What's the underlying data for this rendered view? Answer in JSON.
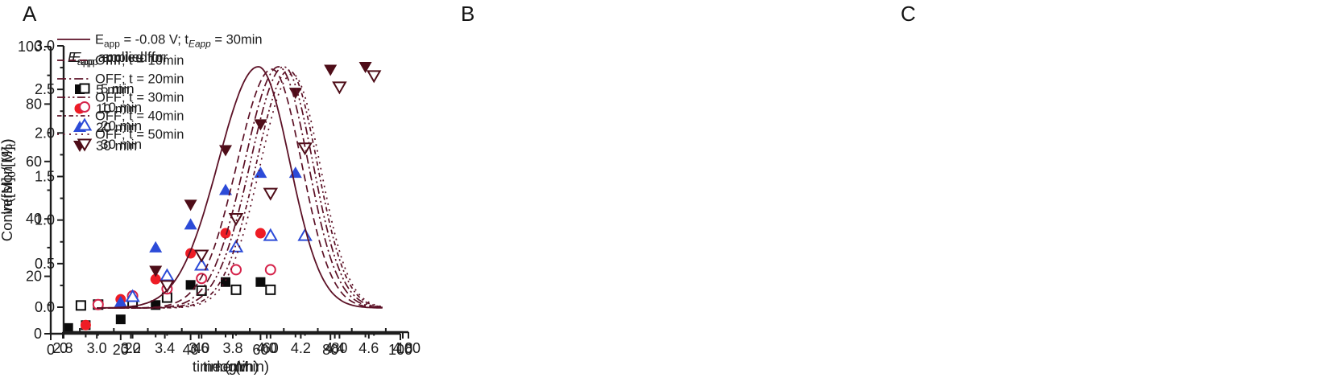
{
  "figure": {
    "background": "#ffffff",
    "axis_color": "#1c1c1c"
  },
  "chart_data": [
    {
      "id": "A",
      "type": "scatter",
      "title": "A",
      "xlabel": "time (min)",
      "ylabel": "Conversion (%)",
      "xlim": [
        0,
        100
      ],
      "ylim": [
        0,
        100
      ],
      "xticks": {
        "values": [
          0,
          20,
          40,
          60,
          80,
          100
        ],
        "labels": [
          "0",
          "20",
          "40",
          "60",
          "80",
          "100"
        ]
      },
      "yticks": {
        "values": [
          0,
          20,
          40,
          60,
          80,
          100
        ],
        "labels": [
          "0",
          "20",
          "40",
          "60",
          "80",
          "100"
        ]
      },
      "xminor": [
        10,
        30,
        50,
        70,
        90
      ],
      "yminor": [
        10,
        30,
        50,
        70,
        90
      ],
      "legend": {
        "title_parts": [
          {
            "t": "E",
            "italic": true
          },
          {
            "t": "app",
            "sub": true
          },
          {
            "t": " applied for"
          }
        ],
        "position": "top-left"
      },
      "series": [
        {
          "name": "5 min",
          "marker": "square",
          "open": false,
          "color": "#0b0b0b",
          "points": [
            [
              5,
              2
            ],
            [
              10,
              3
            ],
            [
              20,
              5
            ],
            [
              30,
              10
            ],
            [
              40,
              17
            ],
            [
              50,
              18
            ],
            [
              60,
              18
            ]
          ]
        },
        {
          "name": "10 min",
          "marker": "circle",
          "open": false,
          "color": "#ee1c25",
          "points": [
            [
              10,
              3
            ],
            [
              20,
              12
            ],
            [
              30,
              19
            ],
            [
              40,
              28
            ],
            [
              50,
              35
            ],
            [
              60,
              35
            ]
          ]
        },
        {
          "name": "20 min",
          "marker": "triangle-up",
          "open": false,
          "color": "#2c4bd8",
          "points": [
            [
              20,
              11
            ],
            [
              30,
              30
            ],
            [
              40,
              38
            ],
            [
              50,
              50
            ],
            [
              60,
              56
            ],
            [
              70,
              56
            ]
          ]
        },
        {
          "name": "30 min",
          "marker": "triangle-down",
          "open": false,
          "color": "#4e0d18",
          "points": [
            [
              30,
              22
            ],
            [
              40,
              45
            ],
            [
              50,
              64
            ],
            [
              60,
              73
            ],
            [
              70,
              84
            ],
            [
              80,
              92
            ],
            [
              90,
              93
            ]
          ]
        }
      ]
    },
    {
      "id": "B",
      "type": "scatter",
      "title": "B",
      "xlabel": "time (min)",
      "ylabel_parts": [
        {
          "t": "ln([M]"
        },
        {
          "t": "0",
          "sub": true
        },
        {
          "t": "/[M]"
        },
        {
          "t": "t",
          "sub": true
        },
        {
          "t": ")"
        }
      ],
      "xlim": [
        0,
        100
      ],
      "ylim": [
        0,
        3.0
      ],
      "xticks": {
        "values": [
          0,
          20,
          40,
          60,
          80,
          100
        ],
        "labels": [
          "0",
          "20",
          "40",
          "60",
          "80",
          "100"
        ]
      },
      "yticks": {
        "values": [
          0,
          0.5,
          1,
          1.5,
          2,
          2.5,
          3
        ],
        "labels": [
          "0.0",
          "0.5",
          "1.0",
          "1.5",
          "2.0",
          "2.5",
          "3.0"
        ]
      },
      "xminor": [
        10,
        30,
        50,
        70,
        90
      ],
      "yminor": [
        0.25,
        0.75,
        1.25,
        1.75,
        2.25,
        2.75
      ],
      "legend": {
        "title_parts": [
          {
            "t": "E",
            "italic": true
          },
          {
            "t": "app",
            "sub": true
          },
          {
            "t": " applied for"
          }
        ],
        "position": "top-left"
      },
      "series": [
        {
          "name": "5 min",
          "marker": "square",
          "open": true,
          "color": "#0b0b0b",
          "points": [
            [
              5,
              0.02
            ],
            [
              10,
              0.03
            ],
            [
              20,
              0.05
            ],
            [
              30,
              0.11
            ],
            [
              40,
              0.19
            ],
            [
              50,
              0.2
            ],
            [
              60,
              0.2
            ]
          ]
        },
        {
          "name": "10 min",
          "marker": "circle",
          "open": true,
          "color": "#d5234a",
          "points": [
            [
              10,
              0.03
            ],
            [
              20,
              0.13
            ],
            [
              30,
              0.21
            ],
            [
              40,
              0.33
            ],
            [
              50,
              0.43
            ],
            [
              60,
              0.43
            ]
          ]
        },
        {
          "name": "20 min",
          "marker": "triangle-up",
          "open": true,
          "color": "#2c4bd8",
          "points": [
            [
              20,
              0.12
            ],
            [
              30,
              0.36
            ],
            [
              40,
              0.48
            ],
            [
              50,
              0.69
            ],
            [
              60,
              0.82
            ],
            [
              70,
              0.82
            ]
          ]
        },
        {
          "name": "30 min",
          "marker": "triangle-down",
          "open": true,
          "color": "#4e0d18",
          "points": [
            [
              30,
              0.25
            ],
            [
              40,
              0.6
            ],
            [
              50,
              1.02
            ],
            [
              60,
              1.31
            ],
            [
              70,
              1.83
            ],
            [
              80,
              2.53
            ],
            [
              90,
              2.66
            ]
          ]
        }
      ]
    },
    {
      "id": "C",
      "type": "line",
      "title": "C",
      "xlabel": "logM",
      "xlim": [
        2.8,
        4.8
      ],
      "xticks": {
        "values": [
          2.8,
          3.0,
          3.2,
          3.4,
          3.6,
          3.8,
          4.0,
          4.2,
          4.4,
          4.6,
          4.8
        ],
        "labels": [
          "2.8",
          "3.0",
          "3.2",
          "3.4",
          "3.6",
          "3.8",
          "4.0",
          "4.2",
          "4.4",
          "4.6",
          "4.8"
        ]
      },
      "xminor": [
        2.9,
        3.1,
        3.3,
        3.5,
        3.7,
        3.9,
        4.1,
        4.3,
        4.5,
        4.7
      ],
      "color": "#5c1126",
      "legend_position": "top-left",
      "curves": [
        {
          "name": "Eapp = -0.08 V; tEapp = 30min",
          "label_parts": [
            {
              "t": "E"
            },
            {
              "t": "app",
              "sub": true
            },
            {
              "t": " = -0.08 V; t"
            },
            {
              "t": "Eapp",
              "sub": true,
              "italic": true
            },
            {
              "t": " = 30min"
            }
          ],
          "dash": "",
          "peak_logM": 3.95,
          "sigma_left": 0.235,
          "sigma_right": 0.185,
          "amplitude": 1.0
        },
        {
          "name": "OFF; t = 10min",
          "label_parts": [
            {
              "t": "OFF; t = 10min"
            }
          ],
          "dash": "9,5",
          "peak_logM": 4.03,
          "sigma_left": 0.205,
          "sigma_right": 0.175,
          "amplitude": 0.99
        },
        {
          "name": "OFF; t = 20min",
          "label_parts": [
            {
              "t": "OFF; t = 20min"
            }
          ],
          "dash": "11,4,2.2,4",
          "peak_logM": 4.07,
          "sigma_left": 0.2,
          "sigma_right": 0.172,
          "amplitude": 1.0
        },
        {
          "name": "OFF; t = 30min",
          "label_parts": [
            {
              "t": "OFF; t = 30min"
            }
          ],
          "dash": "10,3.5,2.2,3.5,2.2,3.5",
          "peak_logM": 4.1,
          "sigma_left": 0.196,
          "sigma_right": 0.17,
          "amplitude": 1.0
        },
        {
          "name": "OFF; t = 40min",
          "label_parts": [
            {
              "t": "OFF; t = 40min"
            }
          ],
          "dash": "5.5,3.5,2,3.5",
          "peak_logM": 4.13,
          "sigma_left": 0.192,
          "sigma_right": 0.167,
          "amplitude": 0.985
        },
        {
          "name": "OFF; t = 50min",
          "label_parts": [
            {
              "t": "OFF; t = 50min"
            }
          ],
          "dash": "2,5.5",
          "peak_logM": 4.15,
          "sigma_left": 0.19,
          "sigma_right": 0.165,
          "amplitude": 0.97
        }
      ]
    }
  ]
}
